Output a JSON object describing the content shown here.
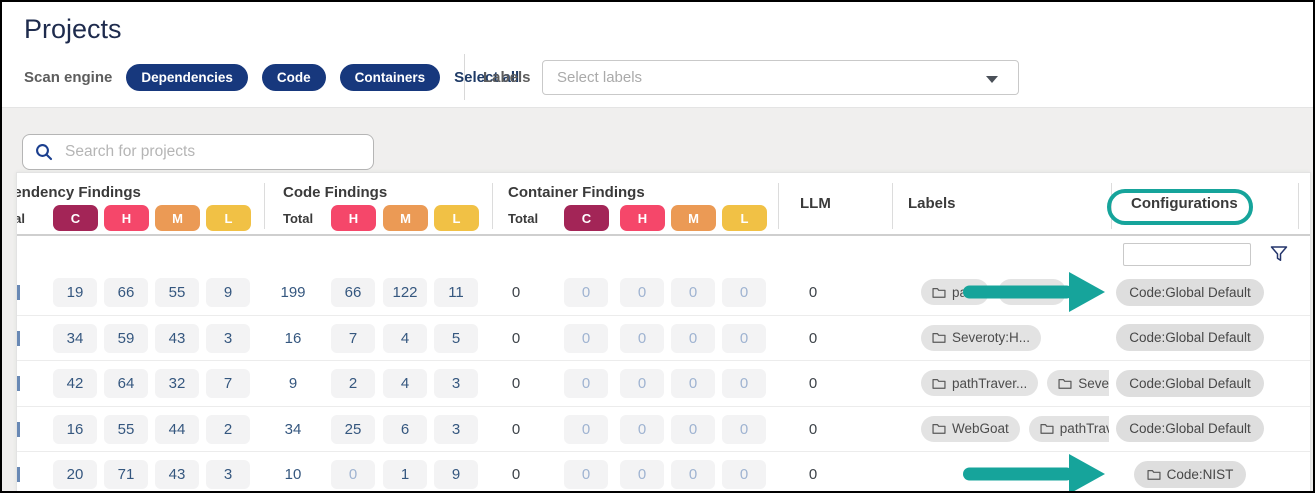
{
  "header": {
    "title": "Projects"
  },
  "filter_bar": {
    "scan_engine_label": "Scan engine",
    "engines": [
      {
        "label": "Dependencies"
      },
      {
        "label": "Code"
      },
      {
        "label": "Containers"
      }
    ],
    "select_all": "Select all",
    "labels_label": "Labels",
    "labels_placeholder": "Select labels"
  },
  "search": {
    "placeholder": "Search for projects"
  },
  "table": {
    "header": {
      "dependency_title": "Dependency Findings",
      "dependency_total": "Total",
      "dependency_severities": [
        "C",
        "H",
        "M",
        "L"
      ],
      "code_title": "Code Findings",
      "code_total": "Total",
      "code_severities": [
        "H",
        "M",
        "L"
      ],
      "container_title": "Container Findings",
      "container_total": "Total",
      "container_severities": [
        "C",
        "H",
        "M",
        "L"
      ],
      "llm": "LLM",
      "labels": "Labels",
      "configurations": "Configurations"
    },
    "severity_colors": {
      "C": "#a32557",
      "H": "#f5476a",
      "M": "#eb9a55",
      "L": "#f1c145"
    },
    "config_filter_value": "",
    "rows": [
      {
        "dep": [
          "19",
          "66",
          "55",
          "9"
        ],
        "code_total": "199",
        "code": [
          "66",
          "122",
          "11"
        ],
        "container_total": "0",
        "container": [
          "0",
          "0",
          "0",
          "0"
        ],
        "llm": "0",
        "labels": [
          "path",
          ""
        ],
        "config": {
          "text": "Code:Global Default",
          "folder_icon": false
        },
        "arrow": true
      },
      {
        "dep": [
          "34",
          "59",
          "43",
          "3"
        ],
        "code_total": "16",
        "code": [
          "7",
          "4",
          "5"
        ],
        "container_total": "0",
        "container": [
          "0",
          "0",
          "0",
          "0"
        ],
        "llm": "0",
        "labels": [
          "Severoty:H..."
        ],
        "config": {
          "text": "Code:Global Default",
          "folder_icon": false
        },
        "arrow": false
      },
      {
        "dep": [
          "42",
          "64",
          "32",
          "7"
        ],
        "code_total": "9",
        "code": [
          "2",
          "4",
          "3"
        ],
        "container_total": "0",
        "container": [
          "0",
          "0",
          "0",
          "0"
        ],
        "llm": "0",
        "labels": [
          "pathTraver...",
          "Severoty"
        ],
        "config": {
          "text": "Code:Global Default",
          "folder_icon": false
        },
        "arrow": false
      },
      {
        "dep": [
          "16",
          "55",
          "44",
          "2"
        ],
        "code_total": "34",
        "code": [
          "25",
          "6",
          "3"
        ],
        "container_total": "0",
        "container": [
          "0",
          "0",
          "0",
          "0"
        ],
        "llm": "0",
        "labels": [
          "WebGoat",
          "pathTraver.."
        ],
        "config": {
          "text": "Code:Global Default",
          "folder_icon": false
        },
        "arrow": false
      },
      {
        "dep": [
          "20",
          "71",
          "43",
          "3"
        ],
        "code_total": "10",
        "code": [
          "0",
          "1",
          "9"
        ],
        "container_total": "0",
        "container": [
          "0",
          "0",
          "0",
          "0"
        ],
        "llm": "0",
        "labels": [],
        "config": {
          "text": "Code:NIST",
          "folder_icon": true
        },
        "arrow": true
      }
    ]
  },
  "annotations": {
    "highlight_color": "#16a49b"
  }
}
